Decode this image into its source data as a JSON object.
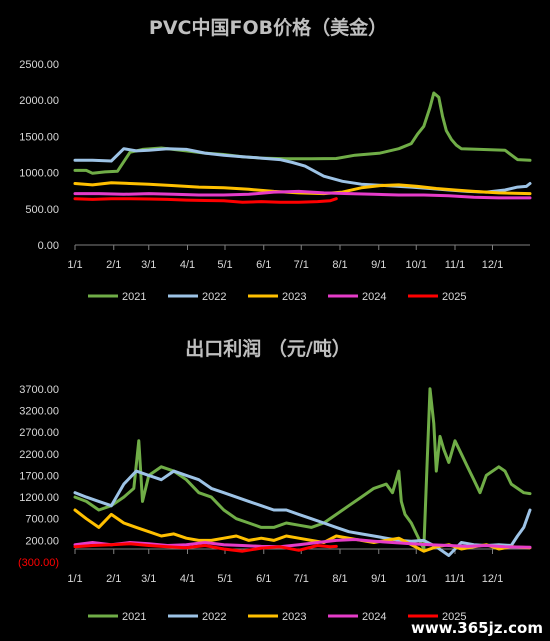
{
  "watermark": "www.365jz.com",
  "chart_data": [
    {
      "type": "line",
      "title": "PVC中国FOB价格（美金）",
      "x_tick_labels": [
        "1/1",
        "2/1",
        "3/1",
        "4/1",
        "5/1",
        "6/1",
        "7/1",
        "8/1",
        "9/1",
        "10/1",
        "11/1",
        "12/1"
      ],
      "x_unit": "day_of_year",
      "xlim": [
        1,
        365
      ],
      "y_tick_labels": [
        "0.00",
        "500.00",
        "1000.00",
        "1500.00",
        "2000.00",
        "2500.00"
      ],
      "y_ticks": [
        0,
        500,
        1000,
        1500,
        2000,
        2500
      ],
      "ylim": [
        0,
        2500
      ],
      "legend_position": "bottom",
      "series": [
        {
          "name": "2021",
          "color": "#70ad47",
          "x": [
            1,
            10,
            15,
            25,
            35,
            45,
            55,
            70,
            90,
            105,
            120,
            135,
            150,
            170,
            190,
            210,
            225,
            245,
            260,
            270,
            275,
            280,
            285,
            288,
            292,
            295,
            298,
            302,
            306,
            310,
            325,
            345,
            355,
            365
          ],
          "y": [
            1030,
            1030,
            990,
            1010,
            1020,
            1280,
            1320,
            1340,
            1300,
            1270,
            1250,
            1220,
            1200,
            1190,
            1190,
            1195,
            1240,
            1270,
            1330,
            1400,
            1530,
            1640,
            1900,
            2100,
            2040,
            1780,
            1580,
            1460,
            1380,
            1330,
            1320,
            1310,
            1180,
            1170
          ]
        },
        {
          "name": "2022",
          "color": "#9dc3e6",
          "x": [
            1,
            15,
            30,
            40,
            50,
            60,
            75,
            90,
            105,
            120,
            135,
            150,
            165,
            175,
            185,
            200,
            215,
            230,
            250,
            270,
            285,
            300,
            315,
            330,
            345,
            355,
            362,
            365
          ],
          "y": [
            1170,
            1170,
            1160,
            1330,
            1300,
            1310,
            1330,
            1320,
            1270,
            1240,
            1220,
            1200,
            1180,
            1140,
            1090,
            950,
            880,
            840,
            820,
            800,
            780,
            760,
            740,
            730,
            760,
            800,
            810,
            850
          ]
        },
        {
          "name": "2023",
          "color": "#ffc000",
          "x": [
            1,
            15,
            30,
            45,
            60,
            80,
            100,
            120,
            140,
            160,
            180,
            200,
            215,
            230,
            245,
            260,
            275,
            290,
            305,
            320,
            340,
            365
          ],
          "y": [
            850,
            830,
            860,
            850,
            840,
            820,
            800,
            790,
            770,
            740,
            720,
            710,
            730,
            790,
            820,
            830,
            810,
            780,
            760,
            740,
            720,
            710
          ]
        },
        {
          "name": "2024",
          "color": "#e53cc8",
          "x": [
            1,
            20,
            40,
            60,
            80,
            100,
            120,
            140,
            160,
            180,
            200,
            220,
            240,
            260,
            280,
            300,
            320,
            340,
            365
          ],
          "y": [
            710,
            710,
            700,
            710,
            700,
            690,
            690,
            700,
            730,
            740,
            720,
            710,
            700,
            690,
            690,
            680,
            660,
            650,
            650
          ]
        },
        {
          "name": "2025",
          "color": "#ff0000",
          "x": [
            1,
            15,
            30,
            45,
            60,
            75,
            90,
            105,
            120,
            135,
            150,
            165,
            180,
            195,
            205,
            210
          ],
          "y": [
            640,
            630,
            640,
            640,
            635,
            630,
            620,
            615,
            610,
            590,
            600,
            590,
            590,
            600,
            610,
            640
          ]
        }
      ]
    },
    {
      "type": "line",
      "title": "出口利润 （元/吨）",
      "x_tick_labels": [
        "1/1",
        "2/1",
        "3/1",
        "4/1",
        "5/1",
        "6/1",
        "7/1",
        "8/1",
        "9/1",
        "10/1",
        "11/1",
        "12/1"
      ],
      "x_unit": "day_of_year",
      "xlim": [
        1,
        365
      ],
      "y_tick_labels": [
        "(300.00)",
        "200.00",
        "700.00",
        "1200.00",
        "1700.00",
        "2200.00",
        "2700.00",
        "3200.00",
        "3700.00"
      ],
      "y_ticks": [
        -300,
        200,
        700,
        1200,
        1700,
        2200,
        2700,
        3200,
        3700
      ],
      "ylim": [
        -300,
        3950
      ],
      "legend_position": "bottom",
      "series": [
        {
          "name": "2021",
          "color": "#70ad47",
          "x": [
            1,
            10,
            20,
            30,
            40,
            48,
            52,
            55,
            60,
            65,
            70,
            80,
            90,
            100,
            110,
            120,
            130,
            140,
            150,
            160,
            170,
            180,
            190,
            200,
            210,
            220,
            230,
            240,
            250,
            255,
            260,
            262,
            265,
            270,
            275,
            280,
            285,
            288,
            290,
            293,
            296,
            300,
            305,
            310,
            315,
            320,
            325,
            330,
            340,
            345,
            350,
            355,
            360,
            365
          ],
          "y": [
            1200,
            1100,
            900,
            1000,
            1200,
            1400,
            2500,
            1100,
            1700,
            1800,
            1900,
            1800,
            1600,
            1300,
            1200,
            900,
            700,
            600,
            500,
            500,
            600,
            550,
            500,
            600,
            800,
            1000,
            1200,
            1400,
            1500,
            1300,
            1800,
            1100,
            800,
            600,
            300,
            0,
            3700,
            2900,
            1800,
            2600,
            2300,
            2000,
            2500,
            2200,
            1900,
            1600,
            1300,
            1700,
            1900,
            1800,
            1500,
            1400,
            1300,
            1280
          ]
        },
        {
          "name": "2022",
          "color": "#9dc3e6",
          "x": [
            1,
            10,
            20,
            30,
            40,
            50,
            60,
            70,
            80,
            90,
            100,
            110,
            120,
            130,
            140,
            150,
            160,
            170,
            180,
            190,
            200,
            210,
            220,
            230,
            240,
            250,
            260,
            270,
            280,
            290,
            300,
            310,
            320,
            330,
            340,
            350,
            355,
            360,
            365
          ],
          "y": [
            1300,
            1200,
            1100,
            1000,
            1500,
            1800,
            1700,
            1600,
            1800,
            1700,
            1600,
            1400,
            1300,
            1200,
            1100,
            1000,
            900,
            900,
            800,
            700,
            600,
            500,
            400,
            350,
            300,
            250,
            200,
            180,
            200,
            50,
            -150,
            150,
            100,
            80,
            100,
            80,
            300,
            500,
            900
          ]
        },
        {
          "name": "2023",
          "color": "#ffc000",
          "x": [
            1,
            10,
            20,
            30,
            40,
            50,
            60,
            70,
            80,
            90,
            100,
            110,
            120,
            130,
            140,
            150,
            160,
            170,
            180,
            190,
            200,
            210,
            220,
            230,
            240,
            250,
            260,
            270,
            280,
            290,
            300,
            310,
            320,
            330,
            340,
            350,
            365
          ],
          "y": [
            900,
            700,
            500,
            800,
            600,
            500,
            400,
            300,
            350,
            250,
            200,
            200,
            250,
            300,
            200,
            250,
            200,
            300,
            250,
            200,
            150,
            300,
            250,
            200,
            150,
            200,
            250,
            100,
            -50,
            50,
            100,
            0,
            50,
            100,
            0,
            50,
            30
          ]
        },
        {
          "name": "2024",
          "color": "#e53cc8",
          "x": [
            1,
            15,
            30,
            45,
            60,
            75,
            90,
            105,
            120,
            135,
            150,
            165,
            180,
            195,
            210,
            225,
            240,
            255,
            270,
            285,
            300,
            315,
            330,
            345,
            365
          ],
          "y": [
            100,
            150,
            100,
            150,
            120,
            80,
            100,
            150,
            100,
            80,
            60,
            50,
            100,
            150,
            200,
            220,
            180,
            150,
            120,
            100,
            80,
            60,
            80,
            50,
            40
          ]
        },
        {
          "name": "2025",
          "color": "#ff0000",
          "x": [
            1,
            15,
            30,
            45,
            60,
            75,
            90,
            105,
            120,
            135,
            150,
            165,
            180,
            195,
            205,
            210
          ],
          "y": [
            50,
            80,
            100,
            120,
            80,
            50,
            30,
            80,
            0,
            -50,
            20,
            50,
            -30,
            80,
            50,
            60
          ]
        }
      ]
    }
  ]
}
